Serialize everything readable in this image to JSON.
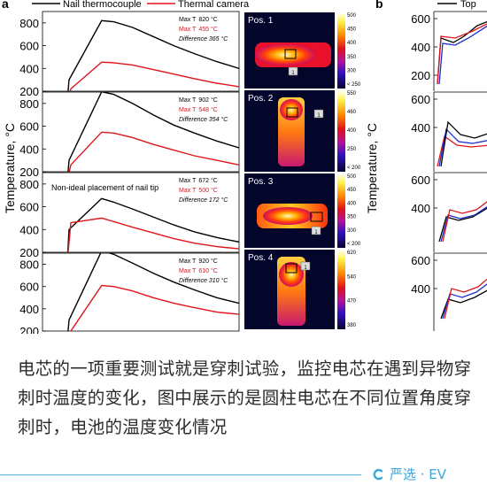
{
  "figure": {
    "panel_a_letter": "a",
    "panel_b_letter": "b",
    "legend_a": [
      "Nail thermocouple",
      "Thermal camera"
    ],
    "legend_b": [
      "Top"
    ],
    "ylabel": "Temperature, °C",
    "colors": {
      "nail": "#000000",
      "camera": "#e0141c",
      "blue": "#1a2ccf"
    }
  },
  "chart_data": [
    {
      "type": "line",
      "panel": "a",
      "position": "Pos. 1",
      "ylabel": "Temperature, °C",
      "ylim": [
        200,
        900
      ],
      "yticks": [
        200,
        400,
        600,
        800
      ],
      "series": [
        {
          "name": "Nail thermocouple",
          "color": "#000000",
          "values": [
            0,
            300,
            820,
            810,
            760,
            680,
            600,
            530,
            460,
            400
          ]
        },
        {
          "name": "Thermal camera",
          "color": "#e0141c",
          "values": [
            0,
            220,
            455,
            450,
            430,
            390,
            350,
            310,
            270,
            240
          ]
        }
      ],
      "annotations": [
        "Max T",
        "820 °C",
        "455 °C",
        "Difference 365 °C"
      ]
    },
    {
      "type": "line",
      "panel": "a",
      "position": "Pos. 2",
      "ylabel": "Temperature, °C",
      "ylim": [
        200,
        900
      ],
      "yticks": [
        200,
        400,
        600,
        800
      ],
      "series": [
        {
          "name": "Nail thermocouple",
          "color": "#000000",
          "values": [
            0,
            300,
            902,
            880,
            800,
            700,
            610,
            540,
            470,
            410
          ]
        },
        {
          "name": "Thermal camera",
          "color": "#e0141c",
          "values": [
            0,
            260,
            548,
            540,
            500,
            440,
            390,
            340,
            300,
            260
          ]
        }
      ],
      "annotations": [
        "Max T",
        "902 °C",
        "548 °C",
        "Difference 354 °C"
      ]
    },
    {
      "type": "line",
      "panel": "a",
      "position": "Pos. 3",
      "ylabel": "Temperature, °C",
      "ylim": [
        200,
        900
      ],
      "yticks": [
        200,
        400,
        600,
        800
      ],
      "series": [
        {
          "name": "Nail thermocouple",
          "color": "#000000",
          "values": [
            0,
            400,
            672,
            640,
            580,
            510,
            440,
            380,
            330,
            290
          ]
        },
        {
          "name": "Thermal camera",
          "color": "#e0141c",
          "values": [
            0,
            460,
            500,
            470,
            420,
            370,
            320,
            280,
            250,
            230
          ]
        }
      ],
      "annotations": [
        "Max T",
        "672 °C",
        "500 °C",
        "Difference 172 °C",
        "Non-ideal placement of nail tip"
      ]
    },
    {
      "type": "line",
      "panel": "a",
      "position": "Pos. 4",
      "ylabel": "Temperature, °C",
      "ylim": [
        200,
        900
      ],
      "yticks": [
        200,
        400,
        600,
        800
      ],
      "series": [
        {
          "name": "Nail thermocouple",
          "color": "#000000",
          "values": [
            0,
            300,
            920,
            890,
            810,
            720,
            640,
            570,
            500,
            450
          ]
        },
        {
          "name": "Thermal camera",
          "color": "#e0141c",
          "values": [
            0,
            200,
            610,
            600,
            560,
            500,
            450,
            410,
            370,
            350
          ]
        }
      ],
      "annotations": [
        "Max T",
        "920 °C",
        "610 °C",
        "Difference 310 °C"
      ]
    },
    {
      "type": "heatmap",
      "panel": "a",
      "positions": [
        "Pos. 1",
        "Pos. 2",
        "Pos. 3",
        "Pos. 4"
      ],
      "scale_labels": [
        [
          "500",
          "450",
          "400",
          "350",
          "300",
          "< 250"
        ],
        [
          "550",
          "460",
          "400",
          "250",
          "< 200"
        ],
        [
          "500",
          "450",
          "400",
          "350",
          "300",
          "< 200"
        ],
        [
          "620",
          "540",
          "470",
          "380"
        ]
      ],
      "markers": [
        "1"
      ]
    },
    {
      "type": "line",
      "panel": "b",
      "ylabel": "Temperature, °C",
      "yticks": [
        600,
        400,
        200
      ],
      "series": [
        {
          "name": "Top",
          "color": "#000000"
        }
      ]
    }
  ],
  "caption": "电芯的一项重要测试就是穿刺试验，监控电芯在遇到异物穿刺时温度的变化，图中展示的是圆柱电芯在不同位置角度穿刺时，电池的温度变化情况",
  "brand": {
    "text": "严选 · EV",
    "icon": "c-ring-icon",
    "color": "#3aa6df"
  }
}
